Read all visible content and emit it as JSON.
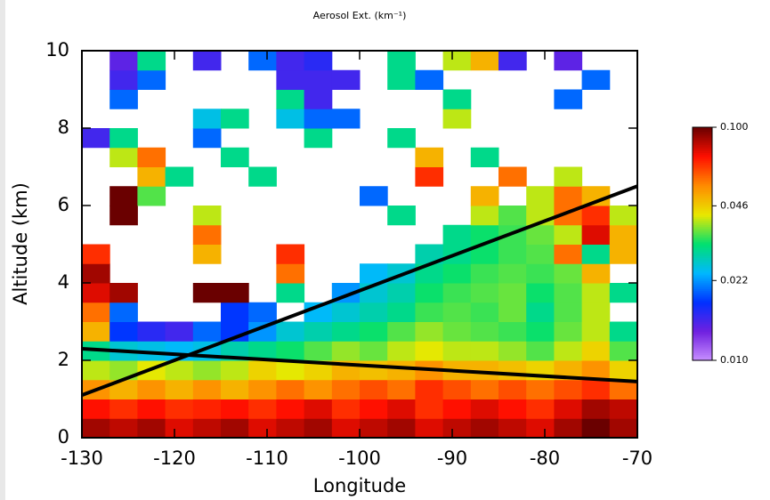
{
  "chart_data": {
    "type": "heatmap",
    "title": "Aerosol Ext. (km⁻¹)",
    "x_label": "Longitude",
    "y_label": "Altitude (km)",
    "x": [
      -128.5,
      -125.5,
      -122.5,
      -119.5,
      -116.5,
      -113.5,
      -110.5,
      -107.5,
      -104.5,
      -101.5,
      -98.5,
      -95.5,
      -92.5,
      -89.5,
      -86.5,
      -83.5,
      -80.5,
      -77.5,
      -74.5,
      -71.5
    ],
    "y": [
      0.25,
      0.75,
      1.25,
      1.75,
      2.25,
      2.75,
      3.25,
      3.75,
      4.25,
      4.75,
      5.25,
      5.75,
      6.25,
      6.75,
      7.25,
      7.75,
      8.25,
      8.75,
      9.25,
      9.75
    ],
    "z": [
      [
        0.09,
        0.085,
        0.09,
        0.08,
        0.085,
        0.09,
        0.08,
        0.085,
        0.09,
        0.08,
        0.085,
        0.09,
        0.08,
        0.085,
        0.09,
        0.085,
        0.08,
        0.09,
        0.1,
        0.09
      ],
      [
        0.075,
        0.07,
        0.075,
        0.07,
        0.072,
        0.075,
        0.07,
        0.075,
        0.08,
        0.07,
        0.075,
        0.08,
        0.07,
        0.075,
        0.08,
        0.075,
        0.07,
        0.08,
        0.09,
        0.085
      ],
      [
        0.055,
        0.05,
        0.055,
        0.05,
        0.055,
        0.05,
        0.055,
        0.06,
        0.055,
        0.06,
        0.065,
        0.06,
        0.07,
        0.065,
        0.06,
        0.065,
        0.06,
        0.065,
        0.07,
        0.06
      ],
      [
        0.04,
        0.038,
        0.042,
        0.04,
        0.038,
        0.04,
        0.045,
        0.042,
        0.045,
        0.05,
        0.048,
        0.05,
        0.055,
        0.05,
        0.05,
        0.048,
        0.045,
        0.05,
        0.055,
        0.045
      ],
      [
        0.03,
        0.026,
        0.025,
        0.024,
        0.025,
        0.028,
        0.03,
        0.032,
        0.035,
        0.038,
        0.036,
        0.04,
        0.042,
        0.04,
        0.04,
        0.038,
        0.035,
        0.04,
        0.045,
        0.035
      ],
      [
        0.05,
        0.018,
        0.016,
        0.015,
        0.02,
        0.018,
        0.022,
        0.026,
        0.028,
        0.03,
        0.032,
        0.035,
        0.038,
        0.036,
        0.035,
        0.034,
        0.032,
        0.036,
        0.04,
        0.03
      ],
      [
        0.06,
        0.02,
        null,
        null,
        null,
        0.018,
        0.02,
        null,
        0.024,
        0.026,
        0.028,
        0.03,
        0.034,
        0.035,
        0.034,
        0.036,
        0.03,
        0.035,
        0.04,
        null
      ],
      [
        0.08,
        0.09,
        null,
        null,
        0.1,
        0.1,
        null,
        0.03,
        null,
        0.022,
        0.026,
        0.028,
        0.032,
        0.034,
        0.035,
        0.036,
        0.032,
        0.035,
        0.04,
        0.03
      ],
      [
        0.09,
        null,
        null,
        null,
        null,
        null,
        null,
        0.06,
        null,
        null,
        0.024,
        0.026,
        0.03,
        0.032,
        0.034,
        0.035,
        0.034,
        0.036,
        0.05,
        null
      ],
      [
        0.07,
        null,
        null,
        null,
        0.05,
        null,
        null,
        0.07,
        null,
        null,
        null,
        null,
        0.028,
        0.03,
        0.032,
        0.034,
        0.035,
        0.06,
        0.03,
        0.05
      ],
      [
        null,
        null,
        null,
        null,
        0.06,
        null,
        null,
        null,
        null,
        null,
        null,
        null,
        null,
        0.03,
        0.032,
        0.034,
        0.036,
        0.04,
        0.08,
        0.05
      ],
      [
        null,
        0.1,
        null,
        null,
        0.04,
        null,
        null,
        null,
        null,
        null,
        null,
        0.03,
        null,
        null,
        0.04,
        0.035,
        0.04,
        0.06,
        0.07,
        0.04
      ],
      [
        null,
        0.1,
        0.035,
        null,
        null,
        null,
        null,
        null,
        null,
        null,
        0.02,
        null,
        null,
        null,
        0.05,
        null,
        0.04,
        0.06,
        0.05,
        null
      ],
      [
        null,
        null,
        0.05,
        0.03,
        null,
        null,
        0.03,
        null,
        null,
        null,
        null,
        null,
        0.07,
        null,
        null,
        0.06,
        null,
        0.04,
        null,
        null
      ],
      [
        null,
        0.04,
        0.06,
        null,
        null,
        0.03,
        null,
        null,
        null,
        null,
        null,
        null,
        0.05,
        null,
        0.03,
        null,
        null,
        null,
        null,
        null
      ],
      [
        0.015,
        0.03,
        null,
        null,
        0.02,
        null,
        null,
        null,
        0.03,
        null,
        null,
        0.03,
        null,
        null,
        null,
        null,
        null,
        null,
        null,
        null
      ],
      [
        null,
        null,
        null,
        null,
        0.025,
        0.03,
        null,
        0.025,
        0.02,
        0.02,
        null,
        null,
        null,
        0.04,
        null,
        null,
        null,
        null,
        null,
        null
      ],
      [
        null,
        0.02,
        null,
        null,
        null,
        null,
        null,
        0.03,
        0.015,
        null,
        null,
        null,
        null,
        0.03,
        null,
        null,
        null,
        0.02,
        null,
        null
      ],
      [
        null,
        0.015,
        0.02,
        null,
        null,
        null,
        null,
        0.015,
        0.015,
        0.015,
        null,
        0.03,
        0.02,
        null,
        null,
        null,
        null,
        null,
        0.02,
        null
      ],
      [
        null,
        0.014,
        0.03,
        null,
        0.015,
        null,
        0.02,
        0.015,
        0.016,
        null,
        null,
        0.03,
        null,
        0.04,
        0.05,
        0.015,
        null,
        0.014,
        null,
        null
      ]
    ],
    "xlim": [
      -130,
      -70
    ],
    "xticks": [
      -130,
      -120,
      -110,
      -100,
      -90,
      -80,
      -70
    ],
    "ylim": [
      0,
      10
    ],
    "yticks": [
      0,
      2,
      4,
      6,
      8,
      10
    ],
    "zlim": [
      0.01,
      0.1
    ],
    "zticks": [
      {
        "value": 0.01,
        "label": "0.010"
      },
      0.022,
      0.046,
      {
        "value": 0.1,
        "label": "0.100"
      }
    ],
    "color_log_scale": true,
    "colormap": [
      "#c890ff",
      "#7020e0",
      "#0030ff",
      "#00b8ff",
      "#00e070",
      "#e8e800",
      "#ff8c00",
      "#ff1000",
      "#6a0000"
    ],
    "lines": [
      {
        "color": "#000000",
        "x": [
          -130,
          -70
        ],
        "y": [
          1.1,
          6.5
        ]
      },
      {
        "color": "#000000",
        "x": [
          -130,
          -70
        ],
        "y": [
          2.3,
          1.45
        ]
      }
    ]
  }
}
